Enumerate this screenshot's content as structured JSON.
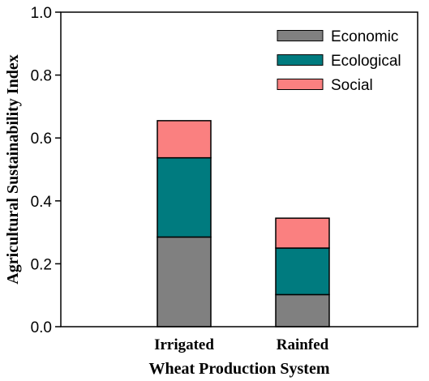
{
  "chart_data": {
    "type": "bar",
    "stacked": true,
    "categories": [
      "Irrigated",
      "Rainfed"
    ],
    "series": [
      {
        "name": "Economic",
        "values": [
          0.285,
          0.102
        ],
        "color": "#808080"
      },
      {
        "name": "Ecological",
        "values": [
          0.252,
          0.148
        ],
        "color": "#007B7F"
      },
      {
        "name": "Social",
        "values": [
          0.118,
          0.095
        ],
        "color": "#FA8080"
      }
    ],
    "xlabel": "Wheat Production System",
    "ylabel": "Agricultural Sustainability Index",
    "ylim": [
      0,
      1.0
    ],
    "yticks": [
      "0.0",
      "0.2",
      "0.4",
      "0.6",
      "0.8",
      "1.0"
    ],
    "yticks_values": [
      0,
      0.2,
      0.4,
      0.6,
      0.8,
      1.0
    ],
    "legend_position": "top-right",
    "grid": false
  }
}
